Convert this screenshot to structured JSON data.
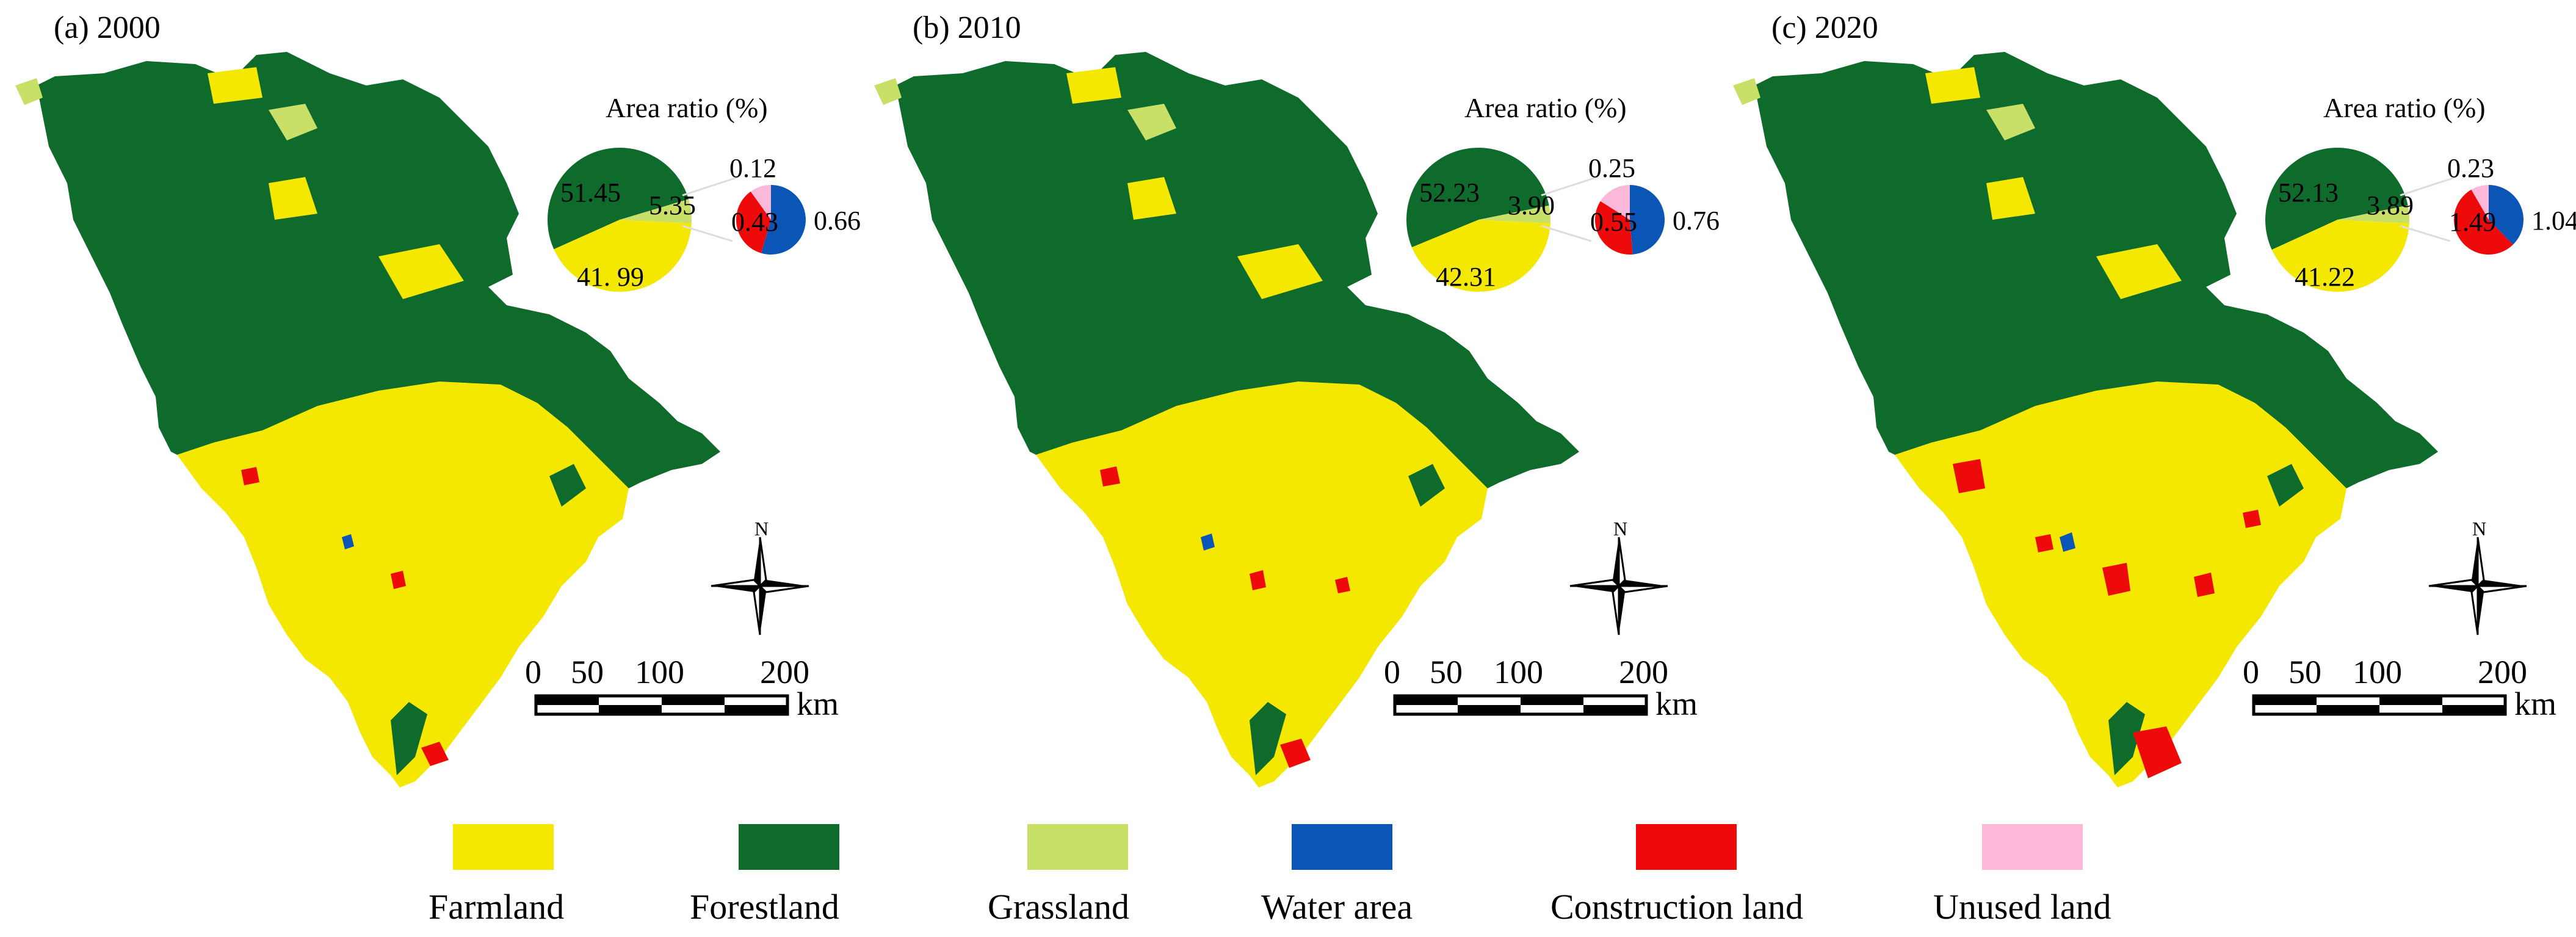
{
  "figure": {
    "colors": {
      "farmland": "#f4e800",
      "forestland": "#0f6b2c",
      "grassland": "#c9e068",
      "water": "#0a55b5",
      "construction": "#ee0a0a",
      "unused": "#fbb8d8"
    },
    "panels": [
      {
        "title": "(a) 2000",
        "pie_title": "Area ratio (%)",
        "main_pie": {
          "forestland": 51.45,
          "farmland": 41.99,
          "grassland": 5.35
        },
        "main_labels": {
          "forestland": "51.45",
          "farmland": "41. 99",
          "grassland": "5.35"
        },
        "small_pie": {
          "unused": 0.12,
          "water": 0.66,
          "construction": 0.43
        },
        "small_labels": {
          "unused": "0.12",
          "water": "0.66",
          "construction": "0.43"
        },
        "north_label": "N",
        "scale_ticks": [
          "0",
          "50",
          "100",
          "200"
        ],
        "scale_unit": "km"
      },
      {
        "title": "(b) 2010",
        "pie_title": "Area ratio (%)",
        "main_pie": {
          "forestland": 52.23,
          "farmland": 42.31,
          "grassland": 3.9
        },
        "main_labels": {
          "forestland": "52.23",
          "farmland": "42.31",
          "grassland": "3.90"
        },
        "small_pie": {
          "unused": 0.25,
          "water": 0.76,
          "construction": 0.55
        },
        "small_labels": {
          "unused": "0.25",
          "water": "0.76",
          "construction": "0.55"
        },
        "north_label": "N",
        "scale_ticks": [
          "0",
          "50",
          "100",
          "200"
        ],
        "scale_unit": "km"
      },
      {
        "title": "(c) 2020",
        "pie_title": "Area ratio (%)",
        "main_pie": {
          "forestland": 52.13,
          "farmland": 41.22,
          "grassland": 3.89
        },
        "main_labels": {
          "forestland": "52.13",
          "farmland": "41.22",
          "grassland": "3.89"
        },
        "small_pie": {
          "unused": 0.23,
          "water": 1.04,
          "construction": 1.49
        },
        "small_labels": {
          "unused": "0.23",
          "water": "1.04",
          "construction": "1.49"
        },
        "north_label": "N",
        "scale_ticks": [
          "0",
          "50",
          "100",
          "200"
        ],
        "scale_unit": "km"
      }
    ],
    "legend": [
      {
        "key": "farmland",
        "label": "Farmland"
      },
      {
        "key": "forestland",
        "label": "Forestland"
      },
      {
        "key": "grassland",
        "label": "Grassland"
      },
      {
        "key": "water",
        "label": "Water area"
      },
      {
        "key": "construction",
        "label": "Construction land"
      },
      {
        "key": "unused",
        "label": "Unused land"
      }
    ]
  }
}
